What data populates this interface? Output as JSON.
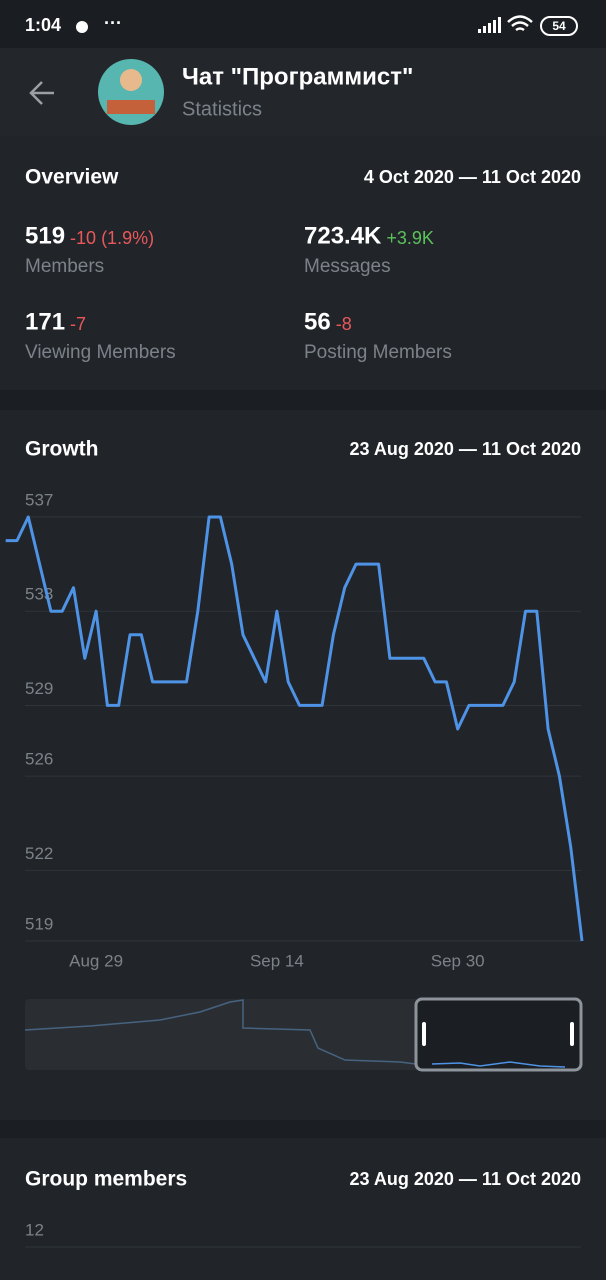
{
  "status_bar": {
    "time": "1:04",
    "battery": "54"
  },
  "header": {
    "title": "Чат \"Программист\"",
    "subtitle": "Statistics"
  },
  "overview": {
    "title": "Overview",
    "range": "4 Oct 2020 — 11 Oct 2020",
    "stats": [
      {
        "value": "519",
        "change": "-10 (1.9%)",
        "label": "Members"
      },
      {
        "value": "723.4K",
        "change": "+3.9K",
        "label": "Messages"
      },
      {
        "value": "171",
        "change": "-7",
        "label": "Viewing Members"
      },
      {
        "value": "56",
        "change": "-8",
        "label": "Posting Members"
      }
    ]
  },
  "growth": {
    "title": "Growth",
    "range": "23 Aug 2020 — 11 Oct 2020",
    "chart": {
      "type": "line",
      "color": "#4e93e6",
      "grid": true,
      "ylim": [
        519,
        537
      ],
      "yticks": [
        537,
        533,
        529,
        526,
        522,
        519
      ],
      "categories": [
        null,
        null,
        null,
        null,
        null,
        null,
        null,
        null,
        "Aug 29",
        null,
        null,
        null,
        null,
        null,
        null,
        null,
        null,
        null,
        null,
        null,
        null,
        null,
        null,
        null,
        "Sep 14",
        null,
        null,
        null,
        null,
        null,
        null,
        null,
        null,
        null,
        null,
        null,
        null,
        null,
        null,
        null,
        "Sep 30",
        null,
        null,
        null,
        null,
        null,
        null,
        null,
        null,
        null,
        null,
        null
      ],
      "values": [
        536,
        536,
        537,
        535,
        533,
        533,
        534,
        531,
        533,
        529,
        529,
        532,
        532,
        530,
        530,
        530,
        530,
        533,
        537,
        537,
        535,
        532,
        531,
        530,
        533,
        530,
        529,
        529,
        529,
        532,
        534,
        535,
        535,
        535,
        531,
        531,
        531,
        531,
        530,
        530,
        528,
        529,
        529,
        529,
        529,
        530,
        533,
        533,
        528,
        526,
        523,
        519
      ]
    }
  },
  "group_members": {
    "title": "Group members",
    "range": "23 Aug 2020 — 11 Oct 2020",
    "yticks": [
      12
    ]
  }
}
